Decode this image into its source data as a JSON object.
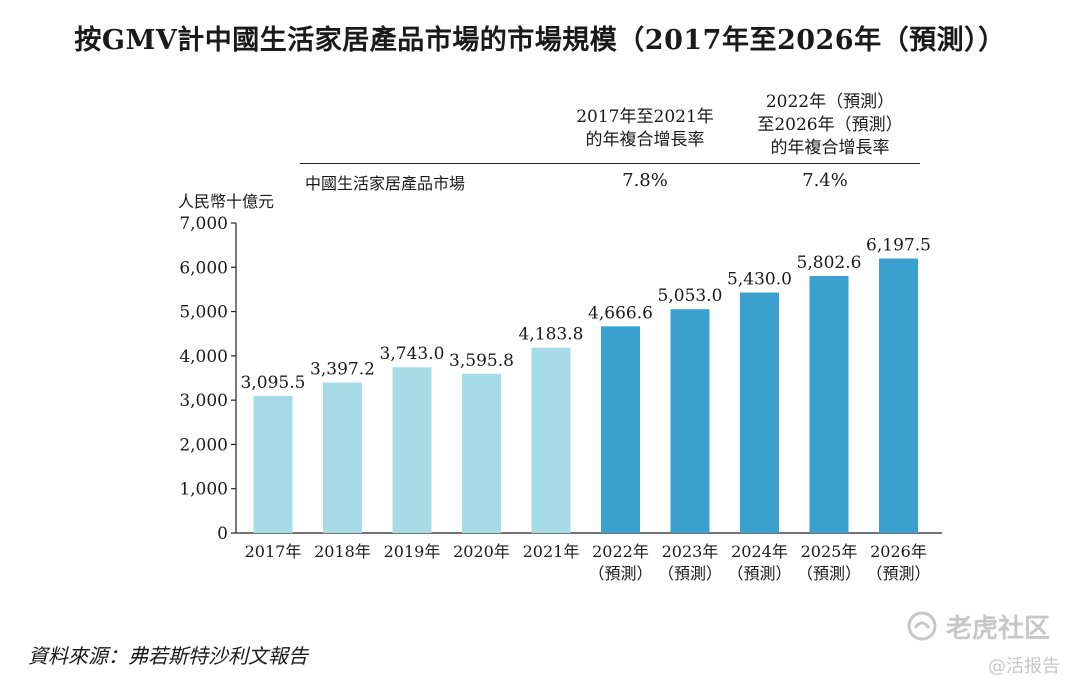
{
  "chart_data": {
    "type": "bar",
    "title": "按GMV計中國生活家居產品市場的市場規模（2017年至2026年（預測））",
    "ylabel": "人民幣十億元",
    "xlabel": "",
    "ylim": [
      0,
      7000
    ],
    "yticks": [
      "0",
      "1,000",
      "2,000",
      "3,000",
      "4,000",
      "5,000",
      "6,000",
      "7,000"
    ],
    "ytick_values": [
      0,
      1000,
      2000,
      3000,
      4000,
      5000,
      6000,
      7000
    ],
    "categories": [
      [
        "2017年"
      ],
      [
        "2018年"
      ],
      [
        "2019年"
      ],
      [
        "2020年"
      ],
      [
        "2021年"
      ],
      [
        "2022年",
        "（預測）"
      ],
      [
        "2023年",
        "（預測）"
      ],
      [
        "2024年",
        "（預測）"
      ],
      [
        "2025年",
        "（預測）"
      ],
      [
        "2026年",
        "（預測）"
      ]
    ],
    "values": [
      3095.5,
      3397.2,
      3743.0,
      3595.8,
      4183.8,
      4666.6,
      5053.0,
      5430.0,
      5802.6,
      6197.5
    ],
    "value_labels": [
      "3,095.5",
      "3,397.2",
      "3,743.0",
      "3,595.8",
      "4,183.8",
      "4,666.6",
      "5,053.0",
      "5,430.0",
      "5,802.6",
      "6,197.5"
    ],
    "groups": [
      "historical",
      "historical",
      "historical",
      "historical",
      "historical",
      "forecast",
      "forecast",
      "forecast",
      "forecast",
      "forecast"
    ],
    "colors": {
      "historical": "#a8dbe8",
      "forecast": "#3aa0cf",
      "axis": "#222222"
    },
    "grid": false,
    "cagr_table": {
      "headers": [
        [
          "2017年至2021年",
          "的年複合增長率"
        ],
        [
          "2022年（預測）",
          "至2026年（預測）",
          "的年複合增長率"
        ]
      ],
      "row_label": "中國生活家居產品市場",
      "values": [
        "7.8%",
        "7.4%"
      ]
    }
  },
  "source": "資料來源：弗若斯特沙利文報告",
  "watermark": {
    "logo_text": "老虎社区",
    "sub_text": "@活报告"
  }
}
